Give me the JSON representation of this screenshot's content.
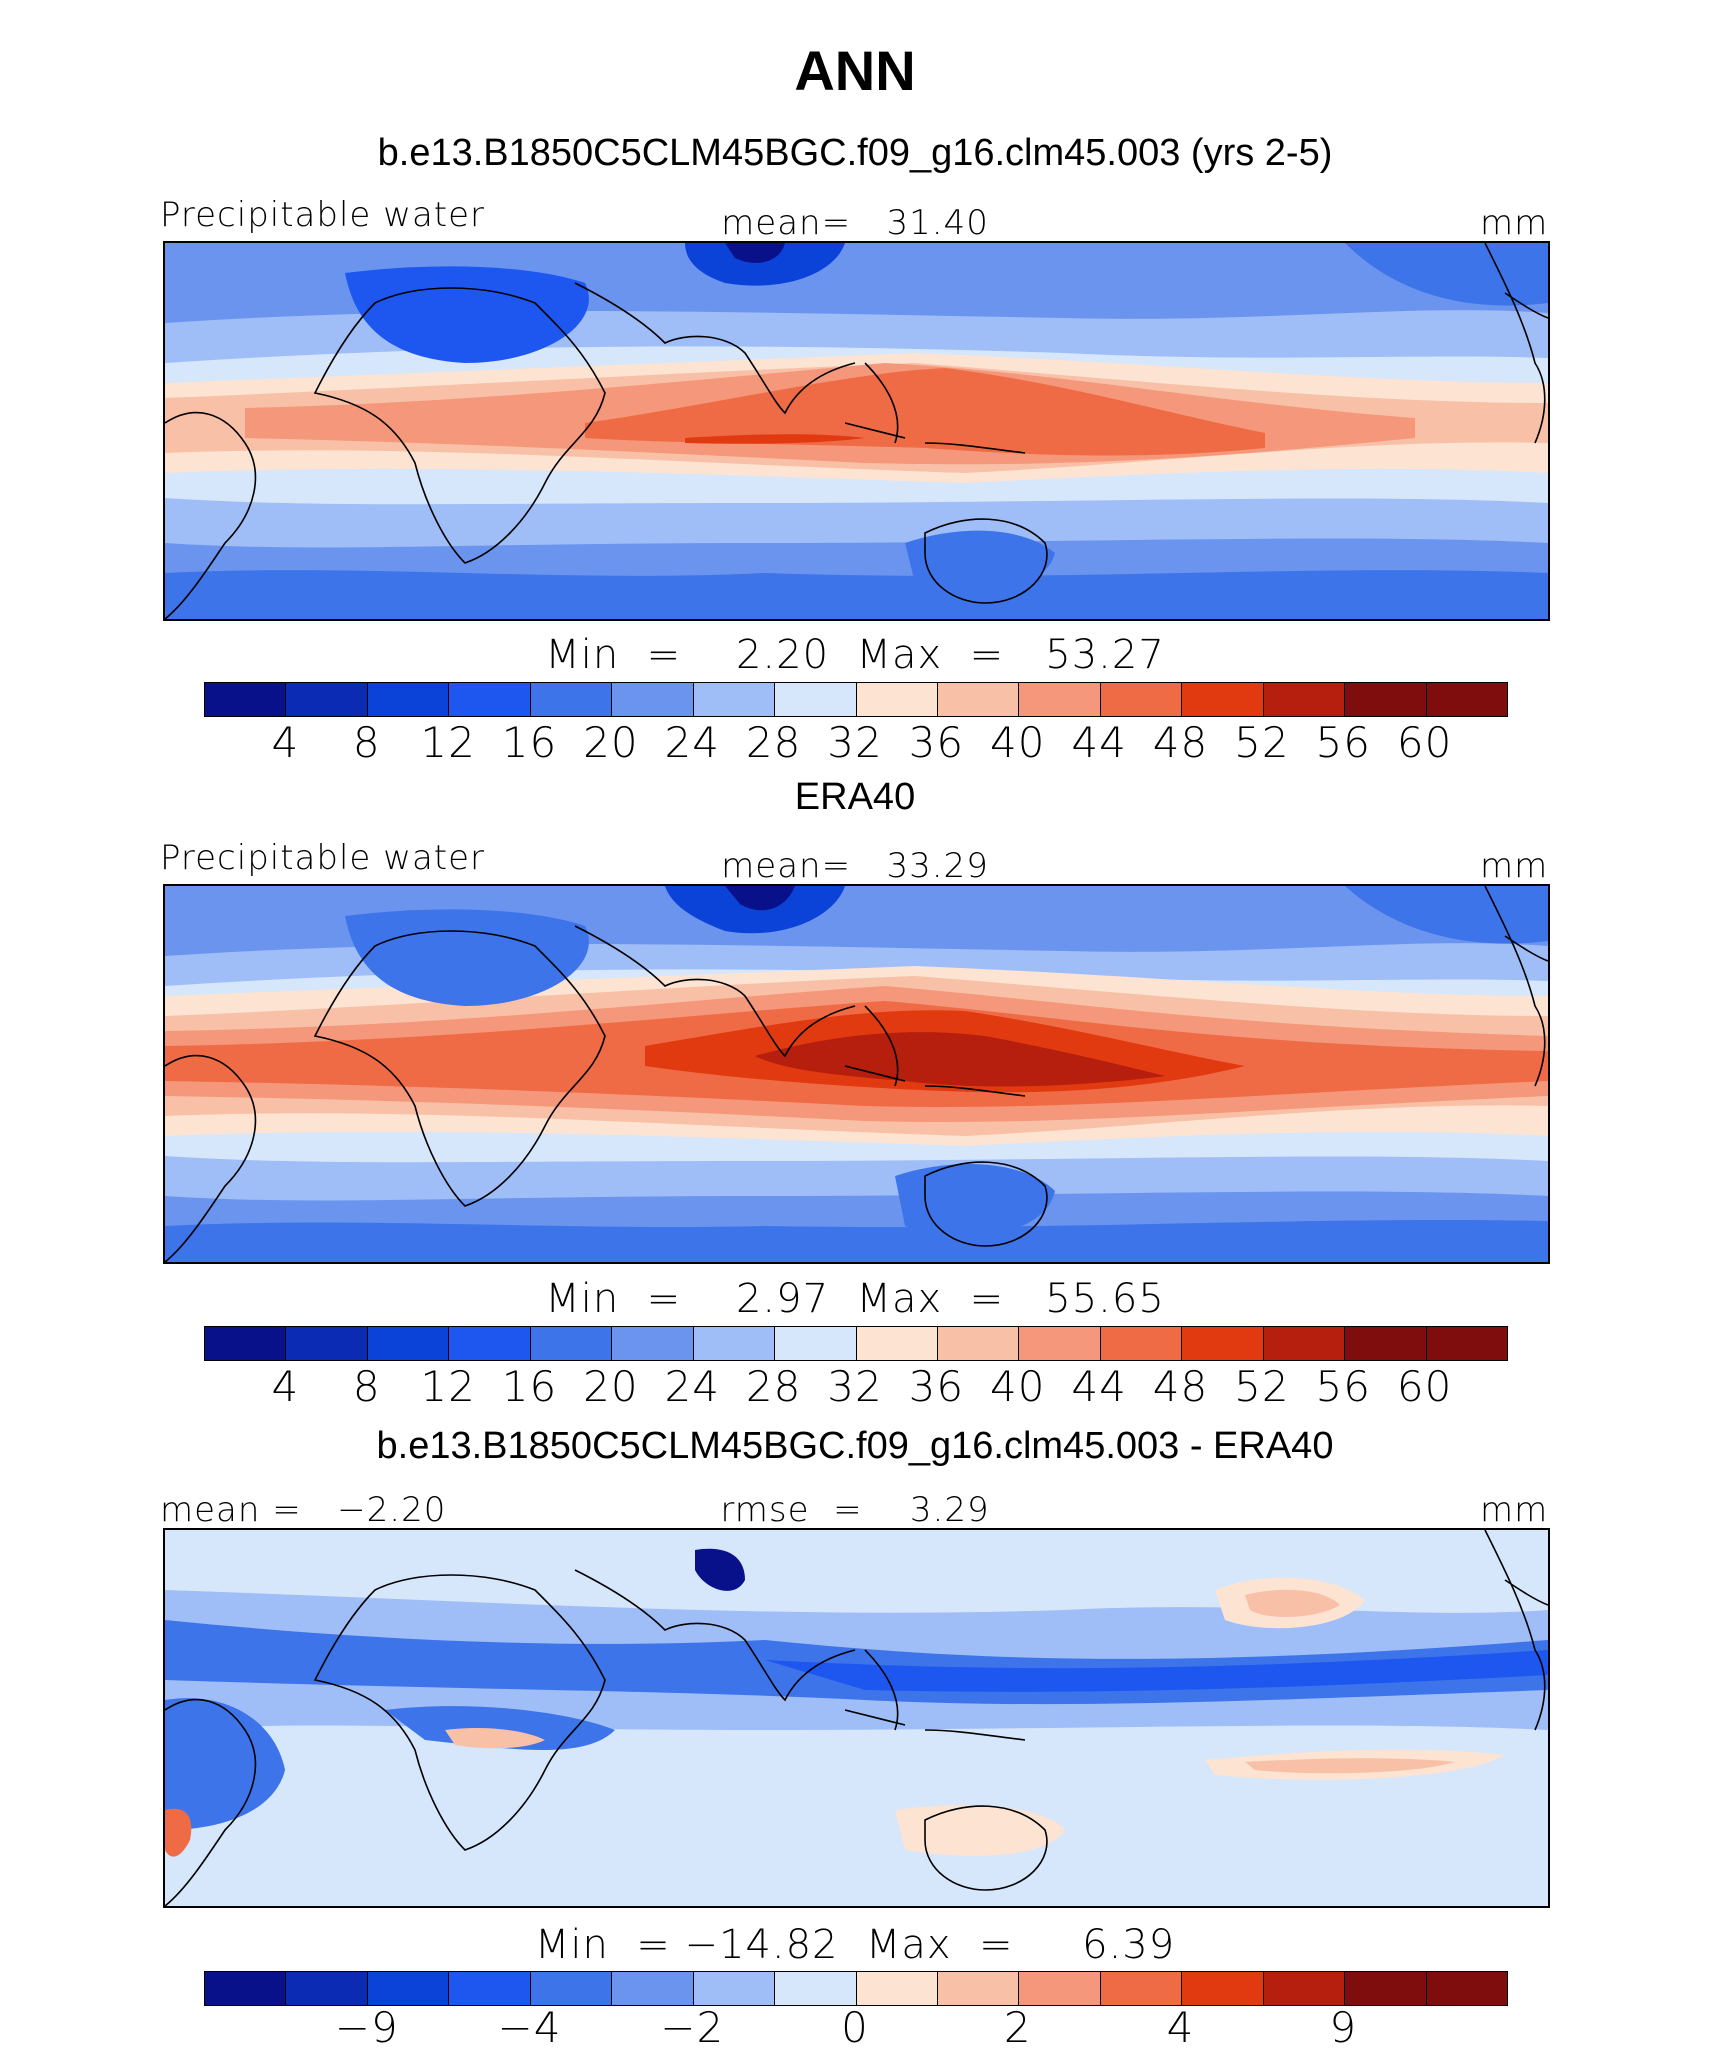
{
  "title": "ANN",
  "palette": [
    "#08118a",
    "#0c2bb4",
    "#0b43d8",
    "#1d57f0",
    "#3d74ea",
    "#6a94ee",
    "#9fbdf6",
    "#d6e6fb",
    "#fce3d2",
    "#f8c0a6",
    "#f5977a",
    "#ef6b46",
    "#e23a10",
    "#b61e0e",
    "#800d0d"
  ],
  "coastline_color": "#000000",
  "panels": [
    {
      "case": "b.e13.B1850C5CLM45BGC.f09_g16.clm45.003 (yrs 2-5)",
      "left_label": "Precipitable water",
      "center_label": "mean=   31.40",
      "right_label": "mm",
      "min_max": "Min  =    2.20  Max  =   53.27",
      "ticks": [
        "4",
        "8",
        "12",
        "16",
        "20",
        "24",
        "28",
        "32",
        "36",
        "40",
        "44",
        "48",
        "52",
        "56",
        "60"
      ]
    },
    {
      "case": "ERA40",
      "left_label": "Precipitable water",
      "center_label": "mean=   33.29",
      "right_label": "mm",
      "min_max": "Min  =    2.97  Max  =   55.65",
      "ticks": [
        "4",
        "8",
        "12",
        "16",
        "20",
        "24",
        "28",
        "32",
        "36",
        "40",
        "44",
        "48",
        "52",
        "56",
        "60"
      ]
    },
    {
      "case": "b.e13.B1850C5CLM45BGC.f09_g16.clm45.003 - ERA40",
      "left_label": "mean =   −2.20",
      "center_label": "rmse  =    3.29",
      "right_label": "mm",
      "min_max": "Min  = −14.82  Max  =     6.39",
      "ticks": [
        "−9",
        "−4",
        "−2",
        "0",
        "2",
        "4",
        "9"
      ]
    }
  ]
}
